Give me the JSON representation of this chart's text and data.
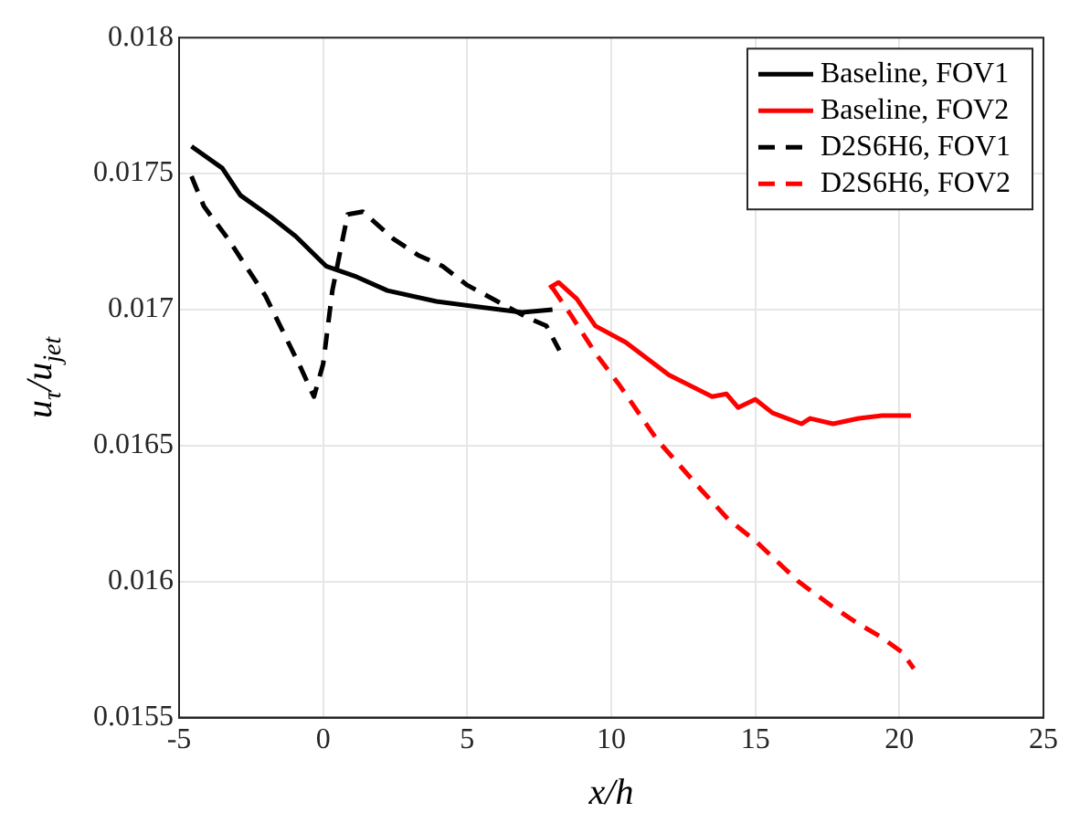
{
  "chart_data": {
    "type": "line",
    "xlabel": "x/h",
    "ylabel": "u$_{τ}$/u$_{jet}$",
    "xlim": [
      -5,
      25
    ],
    "xticks": [
      -5,
      0,
      5,
      10,
      15,
      20,
      25
    ],
    "ylim": [
      0.0155,
      0.018
    ],
    "yticks": [
      0.0155,
      0.016,
      0.0165,
      0.017,
      0.0175,
      0.018
    ],
    "grid": true,
    "legend": "top right",
    "marker": "none",
    "series": [
      {
        "name": "Baseline, FOV1",
        "color": "#000000",
        "line_style": "solid",
        "x": [
          -4.57,
          -3.5,
          -2.87,
          -1.8,
          -0.96,
          0.1,
          1.17,
          2.23,
          3.93,
          5.4,
          6.9,
          7.96
        ],
        "values": [
          0.0176,
          0.01752,
          0.01742,
          0.01734,
          0.01727,
          0.01716,
          0.01712,
          0.01707,
          0.01703,
          0.01701,
          0.01699,
          0.017
        ]
      },
      {
        "name": "Baseline, FOV2",
        "color": "#ff0000",
        "line_style": "solid",
        "x": [
          7.85,
          8.17,
          8.8,
          9.45,
          10.5,
          12.0,
          13.5,
          14.0,
          14.4,
          15.0,
          15.6,
          16.6,
          16.9,
          17.7,
          18.6,
          19.4,
          20.4
        ],
        "values": [
          0.01708,
          0.0171,
          0.01704,
          0.01694,
          0.01688,
          0.01676,
          0.01668,
          0.01669,
          0.01664,
          0.01667,
          0.01662,
          0.01658,
          0.0166,
          0.01658,
          0.0166,
          0.01661,
          0.01661
        ]
      },
      {
        "name": "D2S6H6, FOV1",
        "color": "#000000",
        "line_style": "dashed",
        "x": [
          -4.57,
          -4.14,
          -3.3,
          -2.0,
          -0.75,
          -0.32,
          0,
          0.32,
          0.85,
          1.38,
          2.44,
          3.3,
          4.14,
          5.0,
          6.05,
          7.1,
          7.75,
          8.2
        ],
        "values": [
          0.01749,
          0.01738,
          0.01726,
          0.01705,
          0.01678,
          0.01668,
          0.0168,
          0.01707,
          0.01735,
          0.01736,
          0.01726,
          0.0172,
          0.01716,
          0.01709,
          0.01703,
          0.01697,
          0.01694,
          0.01685
        ]
      },
      {
        "name": "D2S6H6, FOV2",
        "color": "#ff0000",
        "line_style": "dashed",
        "x": [
          7.96,
          8.6,
          9.45,
          10.3,
          11.6,
          13.1,
          14.05,
          15.0,
          16.5,
          17.65,
          18.5,
          19.3,
          20.1,
          20.5
        ],
        "values": [
          0.01708,
          0.01698,
          0.01684,
          0.01672,
          0.01652,
          0.01634,
          0.01623,
          0.01615,
          0.016,
          0.01591,
          0.01585,
          0.0158,
          0.01574,
          0.01568
        ]
      }
    ]
  }
}
